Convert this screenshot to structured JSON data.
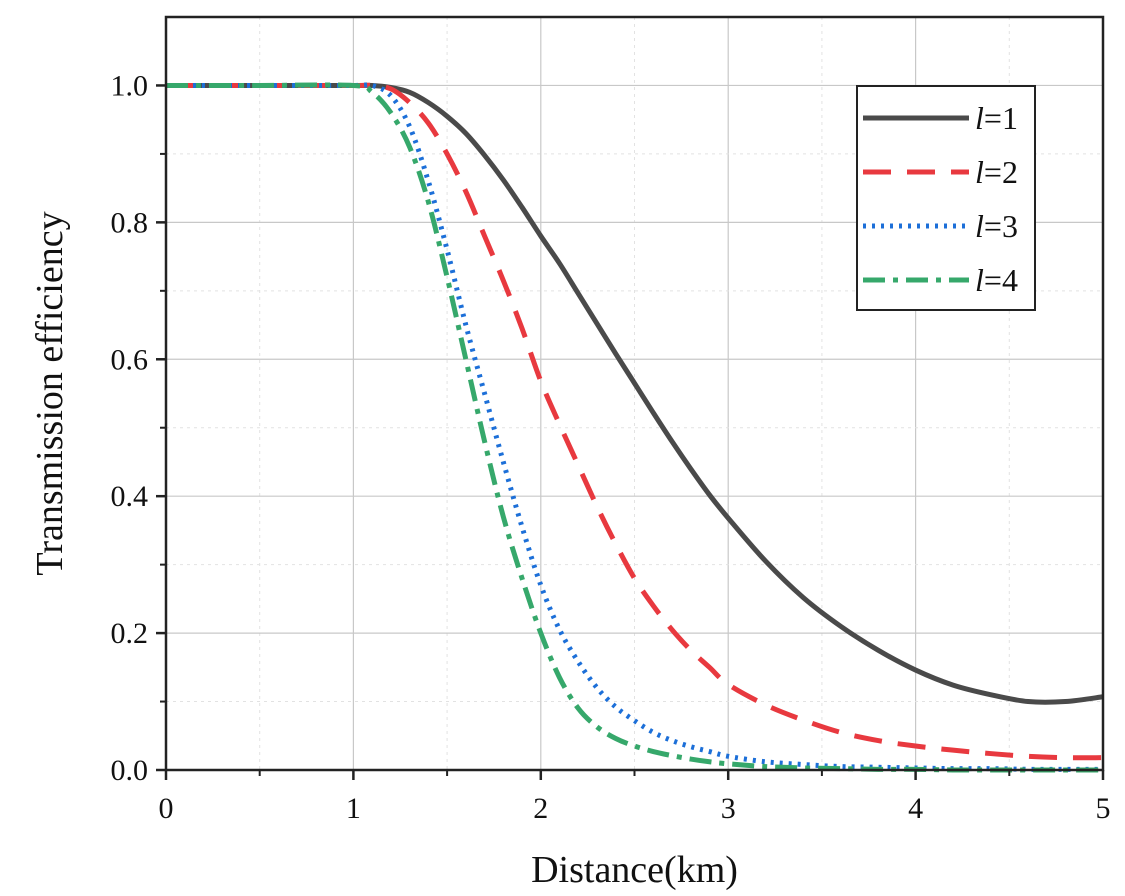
{
  "chart_data": {
    "type": "line",
    "title": "",
    "xlabel": "Distance(km)",
    "ylabel": "Transmission efficiency",
    "xlim": [
      0,
      5
    ],
    "ylim": [
      0,
      1.1
    ],
    "xticks": [
      "0",
      "1",
      "2",
      "3",
      "4",
      "5"
    ],
    "yticks": [
      "0.0",
      "0.2",
      "0.4",
      "0.6",
      "0.8",
      "1.0"
    ],
    "grid": true,
    "legend_position": "top-right",
    "x": [
      0,
      0.5,
      1.0,
      1.1,
      1.2,
      1.3,
      1.4,
      1.5,
      1.6,
      1.7,
      1.8,
      1.9,
      2.0,
      2.1,
      2.2,
      2.3,
      2.4,
      2.5,
      2.6,
      2.7,
      2.8,
      2.9,
      3.0,
      3.2,
      3.4,
      3.6,
      3.8,
      4.0,
      4.2,
      4.4,
      4.6,
      4.8,
      5.0
    ],
    "series": [
      {
        "name": "l=1",
        "legend_italic": "l",
        "legend_rest": "=1",
        "color": "#4a4a4a",
        "dash": "",
        "width": 5,
        "values": [
          1.0,
          1.0,
          1.0,
          1.0,
          0.997,
          0.99,
          0.975,
          0.955,
          0.93,
          0.898,
          0.862,
          0.822,
          0.78,
          0.74,
          0.696,
          0.652,
          0.608,
          0.565,
          0.522,
          0.48,
          0.44,
          0.402,
          0.368,
          0.305,
          0.252,
          0.21,
          0.175,
          0.146,
          0.124,
          0.11,
          0.1,
          0.1,
          0.107
        ]
      },
      {
        "name": "l=2",
        "legend_italic": "l",
        "legend_rest": "=2",
        "color": "#e8393f",
        "dash": "28,16",
        "width": 5,
        "values": [
          1.0,
          1.0,
          1.0,
          1.0,
          0.995,
          0.975,
          0.945,
          0.9,
          0.845,
          0.78,
          0.715,
          0.645,
          0.568,
          0.505,
          0.445,
          0.385,
          0.33,
          0.28,
          0.24,
          0.205,
          0.175,
          0.15,
          0.125,
          0.095,
          0.073,
          0.055,
          0.043,
          0.035,
          0.029,
          0.024,
          0.02,
          0.018,
          0.018
        ]
      },
      {
        "name": "l=3",
        "legend_italic": "l",
        "legend_rest": "=3",
        "color": "#1c6fd8",
        "dash": "3,6",
        "width": 5,
        "values": [
          1.0,
          1.0,
          1.0,
          1.0,
          0.985,
          0.94,
          0.86,
          0.76,
          0.65,
          0.55,
          0.45,
          0.355,
          0.27,
          0.205,
          0.158,
          0.12,
          0.092,
          0.072,
          0.055,
          0.043,
          0.034,
          0.027,
          0.02,
          0.012,
          0.008,
          0.005,
          0.004,
          0.003,
          0.002,
          0.002,
          0.001,
          0.001,
          0.001
        ]
      },
      {
        "name": "l=4",
        "legend_italic": "l",
        "legend_rest": "=4",
        "color": "#36a86b",
        "dash": "22,8,5,8",
        "width": 5,
        "values": [
          1.0,
          1.0,
          1.0,
          0.99,
          0.96,
          0.91,
          0.83,
          0.72,
          0.6,
          0.48,
          0.37,
          0.28,
          0.2,
          0.135,
          0.09,
          0.063,
          0.046,
          0.035,
          0.027,
          0.021,
          0.016,
          0.012,
          0.009,
          0.005,
          0.003,
          0.002,
          0.001,
          0.001,
          0.0,
          0.0,
          0.0,
          0.0,
          0.0
        ]
      }
    ]
  }
}
